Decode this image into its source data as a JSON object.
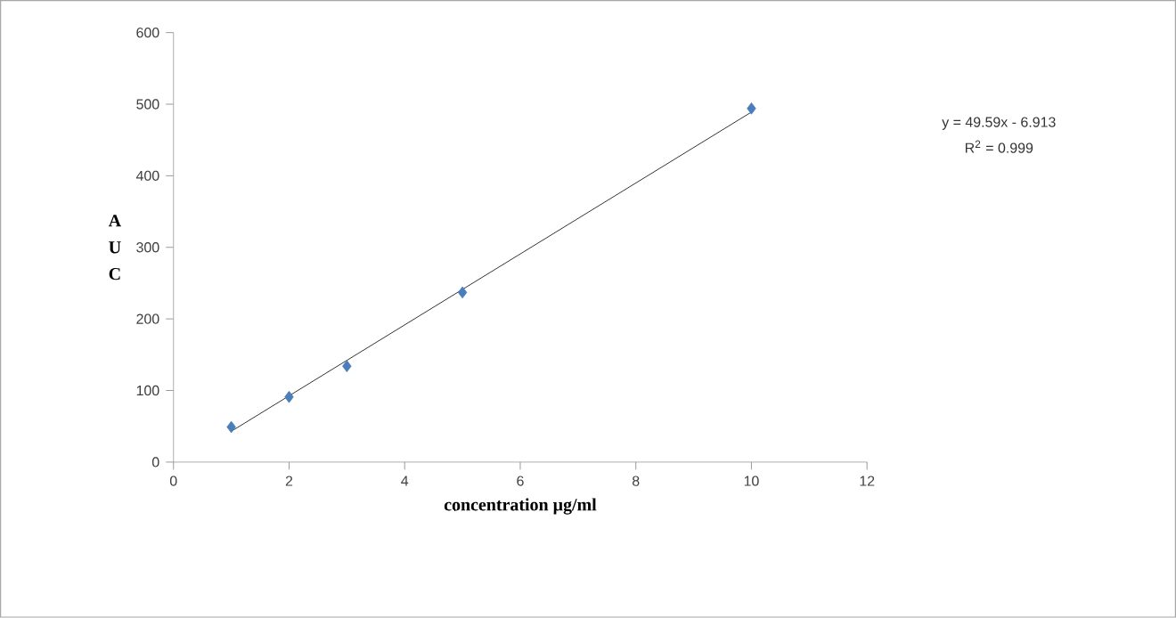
{
  "chart_data": {
    "type": "scatter",
    "xlabel": "concentration µg/ml",
    "ylabel": "A U C",
    "x": [
      1,
      2,
      3,
      5,
      10
    ],
    "series": [
      {
        "color": "#4a7ebb",
        "marker": "diamond",
        "values": [
          49,
          91,
          134,
          237,
          494
        ]
      },
      {
        "type": "line",
        "color": "#000000",
        "marker": "none",
        "x": [
          1,
          10
        ],
        "values": [
          43,
          489
        ]
      }
    ],
    "annotations": [
      "y = 49.59x - 6.913",
      "R$^{2}$ = 0.999"
    ],
    "xlim": [
      0,
      12
    ],
    "ylim": [
      0,
      600
    ],
    "xticks": [
      0,
      2,
      4,
      6,
      8,
      10,
      12
    ],
    "yticks": [
      0,
      100,
      200,
      300,
      400,
      500,
      600
    ],
    "grid": false
  }
}
